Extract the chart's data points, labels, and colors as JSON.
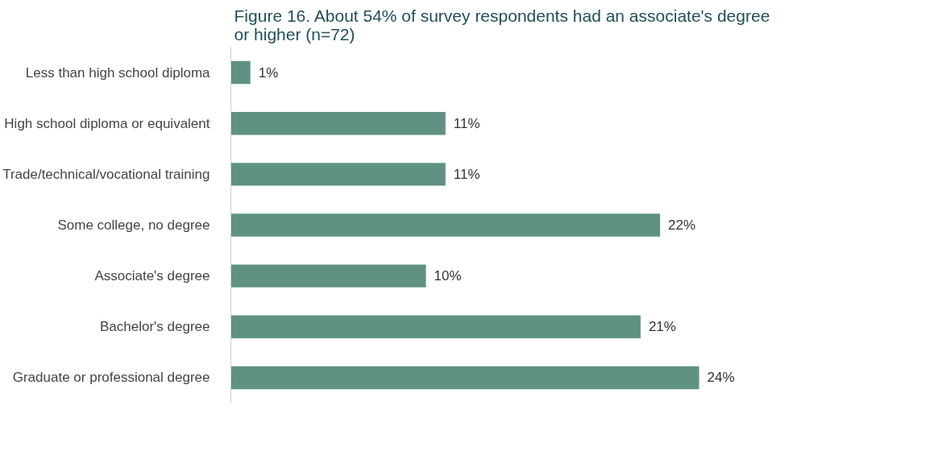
{
  "chart_data": {
    "type": "bar",
    "orientation": "horizontal",
    "title": "Figure 16. About 54% of survey respondents had an associate's degree or higher (n=72)",
    "categories": [
      "Less than high school diploma",
      "High school diploma or equivalent",
      "Trade/technical/vocational training",
      "Some college, no degree",
      "Associate's degree",
      "Bachelor's degree",
      "Graduate or professional degree"
    ],
    "values": [
      1,
      11,
      11,
      22,
      10,
      21,
      24
    ],
    "value_labels": [
      "1%",
      "11%",
      "11%",
      "22%",
      "10%",
      "21%",
      "24%"
    ],
    "color": "#5f9282",
    "grid": false
  }
}
